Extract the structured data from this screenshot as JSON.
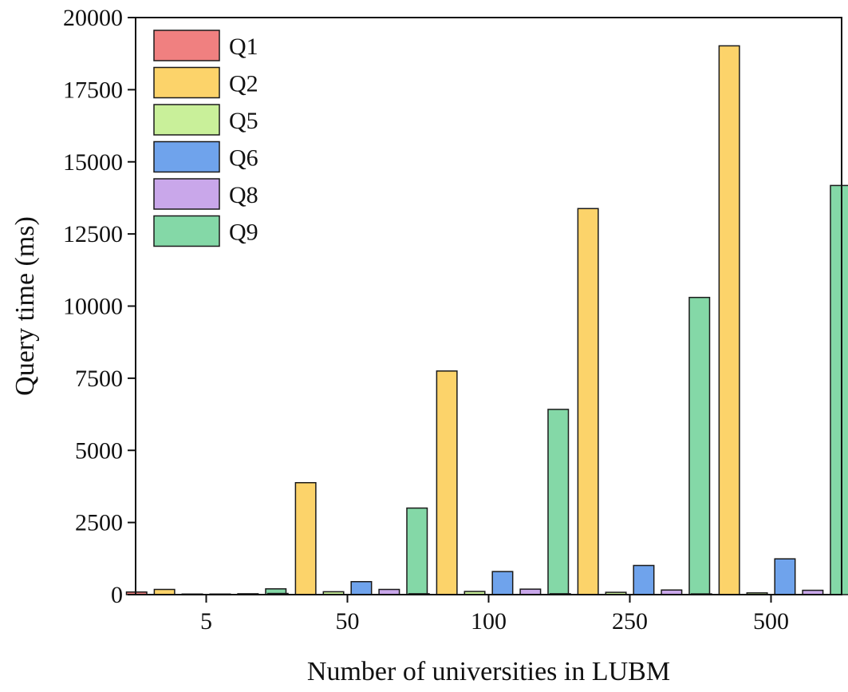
{
  "chart_data": {
    "type": "bar",
    "xlabel": "Number of universities in LUBM",
    "ylabel": "Query time (ms)",
    "categories": [
      "5",
      "50",
      "100",
      "250",
      "500"
    ],
    "ylim": [
      0,
      20000
    ],
    "yticks": [
      0,
      2500,
      5000,
      7500,
      10000,
      12500,
      15000,
      17500,
      20000
    ],
    "grid": false,
    "legend_position": "top-left",
    "series": [
      {
        "name": "Q1",
        "color": "#f08080",
        "values": [
          90,
          40,
          30,
          30,
          25
        ]
      },
      {
        "name": "Q2",
        "color": "#fcd36a",
        "values": [
          180,
          3880,
          7750,
          13380,
          19020
        ]
      },
      {
        "name": "Q5",
        "color": "#c9f09a",
        "values": [
          20,
          100,
          110,
          80,
          60
        ]
      },
      {
        "name": "Q6",
        "color": "#6fa3ec",
        "values": [
          20,
          450,
          800,
          1010,
          1240
        ]
      },
      {
        "name": "Q8",
        "color": "#c9a7ea",
        "values": [
          30,
          180,
          190,
          160,
          150
        ]
      },
      {
        "name": "Q9",
        "color": "#84d8a7",
        "values": [
          200,
          3000,
          6420,
          10300,
          14180
        ]
      }
    ]
  }
}
